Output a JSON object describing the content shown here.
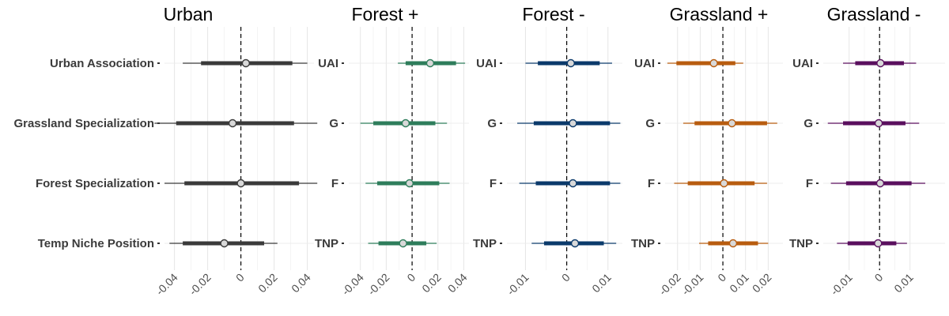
{
  "chart_data": [
    {
      "type": "interval",
      "title": "Urban",
      "color": "#3a3a3a",
      "xlim": [
        -0.046,
        0.044
      ],
      "xticks": [
        {
          "value": -0.04,
          "label": "-0.04"
        },
        {
          "value": -0.02,
          "label": "-0.02"
        },
        {
          "value": 0,
          "label": "0"
        },
        {
          "value": 0.02,
          "label": "0.02"
        },
        {
          "value": 0.04,
          "label": "0.04"
        }
      ],
      "grid": true,
      "categories": [
        "Urban Association",
        "Grassland Specialization",
        "Forest Specialization",
        "Temp Niche Position"
      ],
      "estimates": [
        {
          "label": "Urban Association",
          "mean": 0.003,
          "inner": [
            -0.024,
            0.031
          ],
          "outer": [
            -0.035,
            0.04
          ]
        },
        {
          "label": "Grassland Specialization",
          "mean": -0.005,
          "inner": [
            -0.039,
            0.032
          ],
          "outer": [
            -0.052,
            0.046
          ]
        },
        {
          "label": "Forest Specialization",
          "mean": 0.0,
          "inner": [
            -0.034,
            0.035
          ],
          "outer": [
            -0.046,
            0.046
          ]
        },
        {
          "label": "Temp Niche Position",
          "mean": -0.01,
          "inner": [
            -0.035,
            0.014
          ],
          "outer": [
            -0.043,
            0.022
          ]
        }
      ]
    },
    {
      "type": "interval",
      "title": "Forest +",
      "color": "#2e7d5b",
      "xlim": [
        -0.049,
        0.044
      ],
      "xticks": [
        {
          "value": -0.04,
          "label": "-0.04"
        },
        {
          "value": -0.02,
          "label": "-0.02"
        },
        {
          "value": 0,
          "label": "0"
        },
        {
          "value": 0.02,
          "label": "0.02"
        },
        {
          "value": 0.04,
          "label": "0.04"
        }
      ],
      "grid": true,
      "categories": [
        "UAI",
        "G",
        "F",
        "TNP"
      ],
      "estimates": [
        {
          "label": "UAI",
          "mean": 0.014,
          "inner": [
            -0.005,
            0.034
          ],
          "outer": [
            -0.011,
            0.041
          ]
        },
        {
          "label": "G",
          "mean": -0.005,
          "inner": [
            -0.03,
            0.018
          ],
          "outer": [
            -0.04,
            0.027
          ]
        },
        {
          "label": "F",
          "mean": -0.002,
          "inner": [
            -0.027,
            0.021
          ],
          "outer": [
            -0.036,
            0.029
          ]
        },
        {
          "label": "TNP",
          "mean": -0.007,
          "inner": [
            -0.026,
            0.011
          ],
          "outer": [
            -0.034,
            0.019
          ]
        }
      ]
    },
    {
      "type": "interval",
      "title": "Forest -",
      "color": "#0b3a6b",
      "xlim": [
        -0.0145,
        0.0135
      ],
      "xticks": [
        {
          "value": -0.01,
          "label": "-0.01"
        },
        {
          "value": 0,
          "label": "0"
        },
        {
          "value": 0.01,
          "label": "0.01"
        }
      ],
      "grid": true,
      "categories": [
        "UAI",
        "G",
        "F",
        "TNP"
      ],
      "estimates": [
        {
          "label": "UAI",
          "mean": 0.001,
          "inner": [
            -0.007,
            0.008
          ],
          "outer": [
            -0.01,
            0.011
          ]
        },
        {
          "label": "G",
          "mean": 0.0015,
          "inner": [
            -0.008,
            0.0105
          ],
          "outer": [
            -0.012,
            0.013
          ]
        },
        {
          "label": "F",
          "mean": 0.0015,
          "inner": [
            -0.0075,
            0.0105
          ],
          "outer": [
            -0.0115,
            0.013
          ]
        },
        {
          "label": "TNP",
          "mean": 0.002,
          "inner": [
            -0.0055,
            0.009
          ],
          "outer": [
            -0.0085,
            0.012
          ]
        }
      ]
    },
    {
      "type": "interval",
      "title": "Grassland +",
      "color": "#b85c0f",
      "xlim": [
        -0.0255,
        0.0265
      ],
      "xticks": [
        {
          "value": -0.02,
          "label": "-0.02"
        },
        {
          "value": -0.01,
          "label": "-0.01"
        },
        {
          "value": 0,
          "label": "0"
        },
        {
          "value": 0.01,
          "label": "0.01"
        },
        {
          "value": 0.02,
          "label": "0.02"
        }
      ],
      "grid": true,
      "categories": [
        "UAI",
        "G",
        "F",
        "TNP"
      ],
      "estimates": [
        {
          "label": "UAI",
          "mean": -0.004,
          "inner": [
            -0.0205,
            0.0055
          ],
          "outer": [
            -0.0245,
            0.009
          ]
        },
        {
          "label": "G",
          "mean": 0.004,
          "inner": [
            -0.0125,
            0.0195
          ],
          "outer": [
            -0.0175,
            0.024
          ]
        },
        {
          "label": "F",
          "mean": 0.0005,
          "inner": [
            -0.0155,
            0.014
          ],
          "outer": [
            -0.0215,
            0.0195
          ]
        },
        {
          "label": "TNP",
          "mean": 0.0045,
          "inner": [
            -0.0065,
            0.0155
          ],
          "outer": [
            -0.0105,
            0.02
          ]
        }
      ]
    },
    {
      "type": "interval",
      "title": "Grassland -",
      "color": "#5a0f5e",
      "xlim": [
        -0.0185,
        0.0215
      ],
      "xticks": [
        {
          "value": -0.01,
          "label": "-0.01"
        },
        {
          "value": 0,
          "label": "0"
        },
        {
          "value": 0.01,
          "label": "0.01"
        }
      ],
      "grid": true,
      "categories": [
        "UAI",
        "G",
        "F",
        "TNP"
      ],
      "estimates": [
        {
          "label": "UAI",
          "mean": 0.0003,
          "inner": [
            -0.008,
            0.008
          ],
          "outer": [
            -0.012,
            0.012
          ]
        },
        {
          "label": "G",
          "mean": -0.0003,
          "inner": [
            -0.012,
            0.0085
          ],
          "outer": [
            -0.017,
            0.013
          ]
        },
        {
          "label": "F",
          "mean": 0.0002,
          "inner": [
            -0.011,
            0.0105
          ],
          "outer": [
            -0.016,
            0.015
          ]
        },
        {
          "label": "TNP",
          "mean": -0.0005,
          "inner": [
            -0.0105,
            0.0055
          ],
          "outer": [
            -0.014,
            0.009
          ]
        }
      ]
    }
  ]
}
